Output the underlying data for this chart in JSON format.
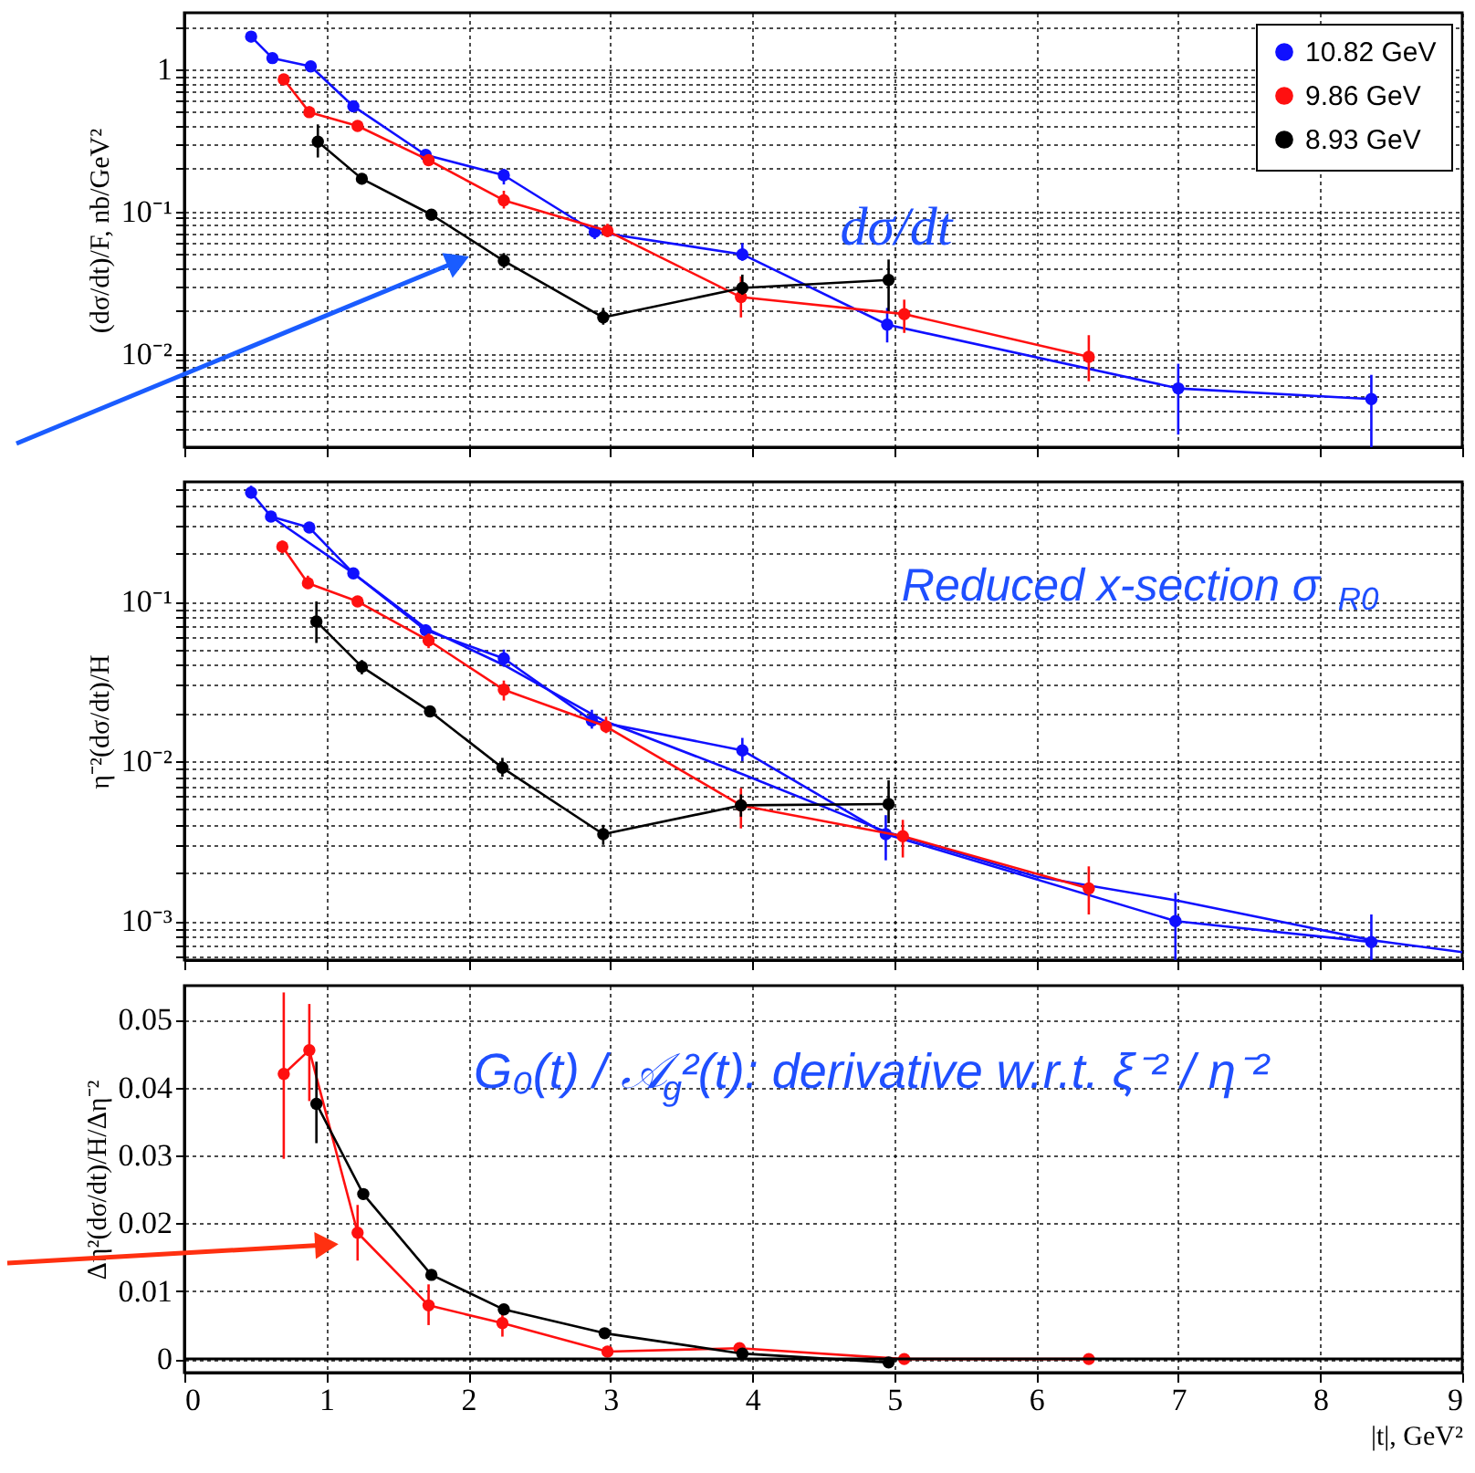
{
  "chart_data": [
    {
      "type": "line",
      "ylabel": "(dσ/dt)/F, nb/GeV²",
      "annotations": [
        "dσ/dt"
      ],
      "log": "y",
      "grid": true,
      "legend": "top right",
      "marker": "circle",
      "line_style": "solid",
      "tick_labels": "y",
      "xlim": [
        0,
        9
      ],
      "xticks": [
        0,
        1,
        2,
        3,
        4,
        5,
        6,
        7,
        8,
        9
      ],
      "ylim": [
        0.0022,
        2.5
      ],
      "yticks": [
        {
          "value": 0.003,
          "label": null
        },
        {
          "value": 0.004,
          "label": null
        },
        {
          "value": 0.005,
          "label": null
        },
        {
          "value": 0.006,
          "label": null
        },
        {
          "value": 0.007,
          "label": null
        },
        {
          "value": 0.008,
          "label": null
        },
        {
          "value": 0.009,
          "label": null
        },
        {
          "value": 0.01,
          "label": "10⁻²"
        },
        {
          "value": 0.02,
          "label": null
        },
        {
          "value": 0.03,
          "label": null
        },
        {
          "value": 0.04,
          "label": null
        },
        {
          "value": 0.05,
          "label": null
        },
        {
          "value": 0.06,
          "label": null
        },
        {
          "value": 0.07,
          "label": null
        },
        {
          "value": 0.08,
          "label": null
        },
        {
          "value": 0.09,
          "label": null
        },
        {
          "value": 0.1,
          "label": "10⁻¹"
        },
        {
          "value": 0.2,
          "label": null
        },
        {
          "value": 0.3,
          "label": null
        },
        {
          "value": 0.4,
          "label": null
        },
        {
          "value": 0.5,
          "label": null
        },
        {
          "value": 0.6,
          "label": null
        },
        {
          "value": 0.7,
          "label": null
        },
        {
          "value": 0.8,
          "label": null
        },
        {
          "value": 0.9,
          "label": null
        },
        1,
        {
          "value": 2,
          "label": null
        }
      ],
      "series": [
        {
          "name": "10.82 GeV",
          "color": "#1010ff",
          "x": [
            0.47,
            0.62,
            0.89,
            1.19,
            1.7,
            2.25,
            2.89,
            3.93,
            4.95,
            7.0,
            8.36
          ],
          "values": [
            1.7,
            1.2,
            1.05,
            0.55,
            0.25,
            0.18,
            0.072,
            0.05,
            0.016,
            0.0057,
            0.0048
          ],
          "errors": [
            [
              1.55,
              1.85
            ],
            [
              1.12,
              1.28
            ],
            [
              0.98,
              1.12
            ],
            [
              0.52,
              0.59
            ],
            [
              0.23,
              0.27
            ],
            [
              0.155,
              0.2
            ],
            [
              0.064,
              0.08
            ],
            [
              0.045,
              0.06
            ],
            [
              0.012,
              0.021
            ],
            [
              0.0027,
              0.0085
            ],
            [
              0.0022,
              0.0071
            ]
          ]
        },
        {
          "name": "9.86 GeV",
          "color": "#ff1010",
          "x": [
            0.7,
            0.88,
            1.22,
            1.72,
            2.25,
            2.98,
            3.92,
            5.07,
            6.37
          ],
          "values": [
            0.85,
            0.5,
            0.4,
            0.23,
            0.12,
            0.073,
            0.025,
            0.019,
            0.0095
          ],
          "errors": [
            [
              0.78,
              0.92
            ],
            [
              0.46,
              0.55
            ],
            [
              0.38,
              0.43
            ],
            [
              0.21,
              0.25
            ],
            [
              0.105,
              0.14
            ],
            [
              0.066,
              0.082
            ],
            [
              0.018,
              0.035
            ],
            [
              0.014,
              0.024
            ],
            [
              0.0064,
              0.0135
            ]
          ]
        },
        {
          "name": "8.93 GeV",
          "color": "#000000",
          "x": [
            0.94,
            1.25,
            1.74,
            2.25,
            2.95,
            3.93,
            4.96
          ],
          "values": [
            0.31,
            0.17,
            0.095,
            0.045,
            0.018,
            0.029,
            0.033
          ],
          "errors": [
            [
              0.24,
              0.41
            ],
            [
              0.155,
              0.185
            ],
            [
              0.09,
              0.1
            ],
            [
              0.04,
              0.051
            ],
            [
              0.016,
              0.021
            ],
            [
              0.026,
              0.036
            ],
            [
              0.02,
              0.046
            ]
          ]
        }
      ]
    },
    {
      "type": "line",
      "ylabel": "η⁻²(dσ/dt)/H",
      "annotations": [
        "Reduced x-section σ$_{R0}$"
      ],
      "log": "y",
      "grid": true,
      "marker": "circle",
      "line_style": "solid",
      "tick_labels": "y",
      "xlim": [
        0,
        9
      ],
      "xticks": [
        0,
        1,
        2,
        3,
        4,
        5,
        6,
        7,
        8,
        9
      ],
      "ylim": [
        0.00057,
        0.56
      ],
      "yticks": [
        {
          "value": 0.0006,
          "label": null
        },
        {
          "value": 0.0007,
          "label": null
        },
        {
          "value": 0.0008,
          "label": null
        },
        {
          "value": 0.0009,
          "label": null
        },
        {
          "value": 0.001,
          "label": "10⁻³"
        },
        {
          "value": 0.002,
          "label": null
        },
        {
          "value": 0.003,
          "label": null
        },
        {
          "value": 0.004,
          "label": null
        },
        {
          "value": 0.005,
          "label": null
        },
        {
          "value": 0.006,
          "label": null
        },
        {
          "value": 0.007,
          "label": null
        },
        {
          "value": 0.008,
          "label": null
        },
        {
          "value": 0.009,
          "label": null
        },
        {
          "value": 0.01,
          "label": "10⁻²"
        },
        {
          "value": 0.02,
          "label": null
        },
        {
          "value": 0.03,
          "label": null
        },
        {
          "value": 0.04,
          "label": null
        },
        {
          "value": 0.05,
          "label": null
        },
        {
          "value": 0.06,
          "label": null
        },
        {
          "value": 0.07,
          "label": null
        },
        {
          "value": 0.08,
          "label": null
        },
        {
          "value": 0.09,
          "label": null
        },
        {
          "value": 0.1,
          "label": "10⁻¹"
        },
        {
          "value": 0.2,
          "label": null
        },
        {
          "value": 0.3,
          "label": null
        },
        {
          "value": 0.4,
          "label": null
        },
        {
          "value": 0.5,
          "label": null
        }
      ],
      "series": [
        {
          "color": "#1010ff",
          "marker": "none",
          "x": [
            0.61,
            1.19,
            1.7,
            2.25,
            2.95,
            3.93,
            4.95,
            6.0,
            7.0,
            8.36,
            9.0
          ],
          "values": [
            0.34,
            0.15,
            0.068,
            0.04,
            0.018,
            0.0083,
            0.0036,
            0.0019,
            0.00134,
            0.00076,
            0.00064
          ]
        },
        {
          "color": "#1010ff",
          "x": [
            0.47,
            0.61,
            0.88,
            1.19,
            1.7,
            2.25,
            2.87,
            3.93,
            4.94,
            6.98,
            8.36
          ],
          "values": [
            0.48,
            0.34,
            0.29,
            0.15,
            0.066,
            0.044,
            0.018,
            0.0117,
            0.0035,
            0.001,
            0.00074
          ],
          "errors": [
            [
              0.44,
              0.53
            ],
            [
              0.32,
              0.36
            ],
            [
              0.27,
              0.31
            ],
            [
              0.14,
              0.16
            ],
            [
              0.06,
              0.072
            ],
            [
              0.039,
              0.05
            ],
            [
              0.016,
              0.021
            ],
            [
              0.01,
              0.014
            ],
            [
              0.0024,
              0.0046
            ],
            [
              0.00057,
              0.0015
            ],
            [
              0.00057,
              0.0011
            ]
          ]
        },
        {
          "color": "#ff1010",
          "x": [
            0.69,
            0.87,
            1.22,
            1.72,
            2.25,
            2.97,
            3.92,
            5.06,
            6.37
          ],
          "values": [
            0.22,
            0.13,
            0.1,
            0.057,
            0.028,
            0.0165,
            0.0053,
            0.0034,
            0.0016
          ],
          "errors": [
            [
              0.2,
              0.24
            ],
            [
              0.12,
              0.145
            ],
            [
              0.095,
              0.105
            ],
            [
              0.051,
              0.063
            ],
            [
              0.024,
              0.032
            ],
            [
              0.015,
              0.019
            ],
            [
              0.0038,
              0.0068
            ],
            [
              0.0025,
              0.0043
            ],
            [
              0.0011,
              0.0022
            ]
          ]
        },
        {
          "color": "#000000",
          "x": [
            0.93,
            1.25,
            1.73,
            2.24,
            2.95,
            3.92,
            4.96
          ],
          "values": [
            0.075,
            0.039,
            0.0205,
            0.0091,
            0.0035,
            0.0053,
            0.0054
          ],
          "errors": [
            [
              0.055,
              0.1
            ],
            [
              0.035,
              0.043
            ],
            [
              0.019,
              0.022
            ],
            [
              0.008,
              0.0105
            ],
            [
              0.003,
              0.004
            ],
            [
              0.0045,
              0.0062
            ],
            [
              0.0041,
              0.0076
            ]
          ]
        }
      ]
    },
    {
      "type": "line",
      "ylabel": "Δη²(dσ/dt)/H/Δη⁻²",
      "xlabel": "|t|, GeV²",
      "annotations": [
        "G₀(t) / 𝒜$_{g}$²(t): derivative w.r.t. ξ⁻² / η⁻²"
      ],
      "grid": true,
      "marker": "circle",
      "line_style": "solid",
      "xlim": [
        0,
        9
      ],
      "xticks": [
        0,
        1,
        2,
        3,
        4,
        5,
        6,
        7,
        8,
        9
      ],
      "ylim": [
        -0.002,
        0.055
      ],
      "yticks": [
        0,
        0.01,
        0.02,
        0.03,
        0.04,
        0.05
      ],
      "ref_lines": [
        {
          "axis": "y",
          "value": 0,
          "color": "#000000"
        }
      ],
      "series": [
        {
          "color": "#ff1010",
          "x": [
            0.7,
            0.88,
            1.22,
            1.72,
            2.24,
            2.98,
            3.91,
            5.07,
            6.37
          ],
          "values": [
            0.042,
            0.0455,
            0.0186,
            0.0079,
            0.0053,
            0.0011,
            0.0016,
            0,
            0
          ],
          "errors": [
            [
              0.0295,
              0.054
            ],
            [
              0.038,
              0.0523
            ],
            [
              0.0145,
              0.0227
            ],
            [
              0.005,
              0.011
            ],
            [
              0.0033,
              0.0073
            ],
            [
              0.0003,
              0.0019
            ],
            null,
            null,
            null
          ]
        },
        {
          "color": "#000000",
          "x": [
            0.93,
            1.26,
            1.74,
            2.25,
            2.96,
            3.93,
            4.96
          ],
          "values": [
            0.0376,
            0.0243,
            0.0124,
            0.0073,
            0.0038,
            0.0008,
            -0.0005
          ],
          "errors": [
            [
              0.0318,
              0.0438
            ],
            [
              0.0235,
              0.025
            ],
            null,
            null,
            null,
            null,
            null
          ]
        }
      ]
    }
  ]
}
